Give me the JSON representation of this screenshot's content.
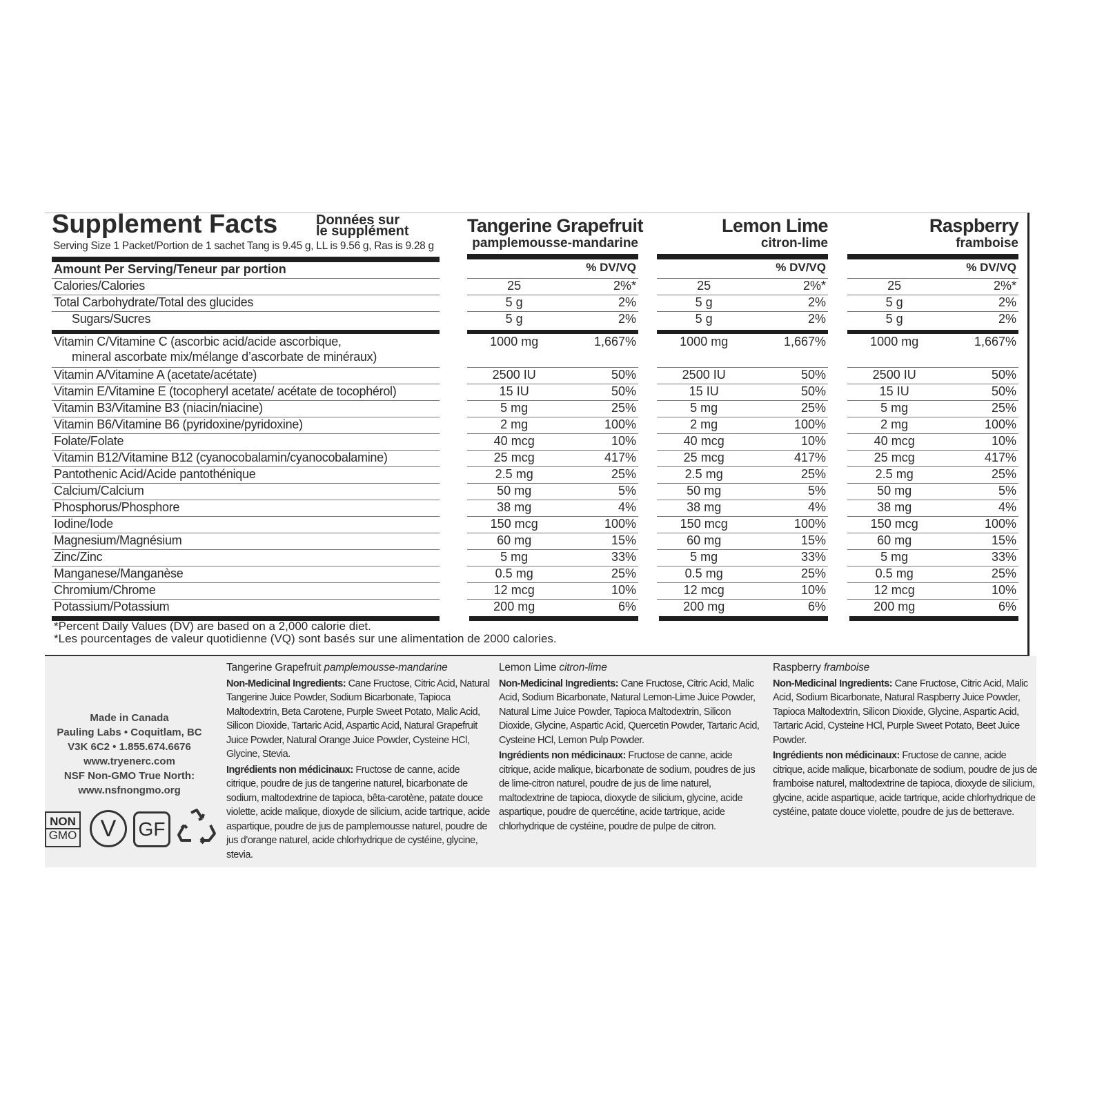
{
  "header": {
    "title": "Supplement Facts",
    "title_fr": [
      "Données sur",
      "le supplément"
    ],
    "serving": "Serving Size 1 Packet/Portion de 1 sachet Tang is 9.45 g, LL is 9.56 g, Ras is 9.28 g",
    "amount_header": "Amount Per Serving/Teneur par portion",
    "dv_header": "% DV/VQ"
  },
  "flavors": [
    {
      "name": "Tangerine Grapefruit",
      "name_fr": "pamplemousse-mandarine"
    },
    {
      "name": "Lemon Lime",
      "name_fr": "citron-lime"
    },
    {
      "name": "Raspberry",
      "name_fr": "framboise"
    }
  ],
  "table": {
    "rows": [
      {
        "label": [
          "Calories/Calories"
        ],
        "cells": [
          [
            "25",
            "2%*"
          ],
          [
            "25",
            "2%*"
          ],
          [
            "25",
            "2%*"
          ]
        ]
      },
      {
        "label": [
          "Total Carbohydrate/Total des glucides"
        ],
        "cells": [
          [
            "5 g",
            "2%"
          ],
          [
            "5 g",
            "2%"
          ],
          [
            "5 g",
            "2%"
          ]
        ]
      },
      {
        "label": [
          "Sugars/Sucres"
        ],
        "indent": true,
        "cells": [
          [
            "5 g",
            "2%"
          ],
          [
            "5 g",
            "2%"
          ],
          [
            "5 g",
            "2%"
          ]
        ]
      },
      {
        "label": [
          "Vitamin C/Vitamine C (ascorbic acid/acide ascorbique,",
          "mineral ascorbate mix/mélange d’ascorbate de minéraux)"
        ],
        "cells": [
          [
            "1000 mg",
            "1,667%"
          ],
          [
            "1000 mg",
            "1,667%"
          ],
          [
            "1000 mg",
            "1,667%"
          ]
        ]
      },
      {
        "label": [
          "Vitamin A/Vitamine A (acetate/acétate)"
        ],
        "cells": [
          [
            "2500 IU",
            "50%"
          ],
          [
            "2500 IU",
            "50%"
          ],
          [
            "2500 IU",
            "50%"
          ]
        ]
      },
      {
        "label": [
          "Vitamin E/Vitamine E (tocopheryl acetate/ acétate de tocophérol)"
        ],
        "cells": [
          [
            "15 IU",
            "50%"
          ],
          [
            "15 IU",
            "50%"
          ],
          [
            "15 IU",
            "50%"
          ]
        ]
      },
      {
        "label": [
          "Vitamin B3/Vitamine B3 (niacin/niacine)"
        ],
        "cells": [
          [
            "5 mg",
            "25%"
          ],
          [
            "5 mg",
            "25%"
          ],
          [
            "5 mg",
            "25%"
          ]
        ]
      },
      {
        "label": [
          "Vitamin B6/Vitamine B6 (pyridoxine/pyridoxine)"
        ],
        "cells": [
          [
            "2 mg",
            "100%"
          ],
          [
            "2 mg",
            "100%"
          ],
          [
            "2 mg",
            "100%"
          ]
        ]
      },
      {
        "label": [
          "Folate/Folate"
        ],
        "cells": [
          [
            "40 mcg",
            "10%"
          ],
          [
            "40 mcg",
            "10%"
          ],
          [
            "40 mcg",
            "10%"
          ]
        ]
      },
      {
        "label": [
          "Vitamin B12/Vitamine B12 (cyanocobalamin/cyanocobalamine)"
        ],
        "cells": [
          [
            "25 mcg",
            "417%"
          ],
          [
            "25 mcg",
            "417%"
          ],
          [
            "25 mcg",
            "417%"
          ]
        ]
      },
      {
        "label": [
          "Pantothenic Acid/Acide pantothénique"
        ],
        "cells": [
          [
            "2.5 mg",
            "25%"
          ],
          [
            "2.5 mg",
            "25%"
          ],
          [
            "2.5 mg",
            "25%"
          ]
        ]
      },
      {
        "label": [
          "Calcium/Calcium"
        ],
        "cells": [
          [
            "50 mg",
            "5%"
          ],
          [
            "50 mg",
            "5%"
          ],
          [
            "50 mg",
            "5%"
          ]
        ]
      },
      {
        "label": [
          "Phosphorus/Phosphore"
        ],
        "cells": [
          [
            "38 mg",
            "4%"
          ],
          [
            "38 mg",
            "4%"
          ],
          [
            "38 mg",
            "4%"
          ]
        ]
      },
      {
        "label": [
          "Iodine/Iode"
        ],
        "cells": [
          [
            "150 mcg",
            "100%"
          ],
          [
            "150 mcg",
            "100%"
          ],
          [
            "150 mcg",
            "100%"
          ]
        ]
      },
      {
        "label": [
          "Magnesium/Magnésium"
        ],
        "cells": [
          [
            "60 mg",
            "15%"
          ],
          [
            "60 mg",
            "15%"
          ],
          [
            "60 mg",
            "15%"
          ]
        ]
      },
      {
        "label": [
          "Zinc/Zinc"
        ],
        "cells": [
          [
            "5 mg",
            "33%"
          ],
          [
            "5 mg",
            "33%"
          ],
          [
            "5 mg",
            "33%"
          ]
        ]
      },
      {
        "label": [
          "Manganese/Manganèse"
        ],
        "cells": [
          [
            "0.5 mg",
            "25%"
          ],
          [
            "0.5 mg",
            "25%"
          ],
          [
            "0.5 mg",
            "25%"
          ]
        ]
      },
      {
        "label": [
          "Chromium/Chrome"
        ],
        "cells": [
          [
            "12 mcg",
            "10%"
          ],
          [
            "12 mcg",
            "10%"
          ],
          [
            "12 mcg",
            "10%"
          ]
        ]
      },
      {
        "label": [
          "Potassium/Potassium"
        ],
        "cells": [
          [
            "200 mg",
            "6%"
          ],
          [
            "200 mg",
            "6%"
          ],
          [
            "200 mg",
            "6%"
          ]
        ]
      }
    ]
  },
  "footnotes": [
    "*Percent Daily Values (DV) are based on a 2,000 calorie diet.",
    "*Les pourcentages de valeur quotidienne (VQ) sont basés sur une alimentation de 2000 calories."
  ],
  "company": [
    "Made in Canada",
    "Pauling Labs • Coquitlam, BC",
    "V3K 6C2 • 1.855.674.6676",
    "www.tryenerc.com",
    "NSF Non-GMO True North:",
    "www.nsfnongmo.org"
  ],
  "badges": {
    "non_gmo": [
      "NON",
      "GMO"
    ],
    "vegan": "V",
    "gluten_free": "GF"
  },
  "ingredients": [
    {
      "name": "Tangerine Grapefruit",
      "name_fr": "pamplemousse-mandarine",
      "label": "Non-Medicinal Ingredients:",
      "text": "Cane Fructose, Citric Acid, Natural Tangerine Juice Powder, Sodium Bicarbonate, Tapioca Maltodextrin, Beta Carotene, Purple Sweet Potato, Malic Acid, Silicon Dioxide, Tartaric Acid, Aspartic Acid, Natural Grapefruit Juice Powder, Natural Orange Juice Powder, Cysteine HCl, Glycine, Stevia.",
      "label_fr": "Ingrédients non médicinaux:",
      "text_fr": "Fructose de canne, acide citrique, poudre de jus de tangerine naturel, bicarbonate de sodium, maltodextrine de tapioca, bêta-carotène, patate douce violette, acide malique, dioxyde de silicium, acide tartrique, acide aspartique, poudre de jus de pamplemousse naturel, poudre de jus d’orange naturel, acide chlorhydrique de cystéine, glycine, stevia."
    },
    {
      "name": "Lemon Lime",
      "name_fr": "citron-lime",
      "label": "Non-Medicinal Ingredients:",
      "text": "Cane Fructose, Citric Acid, Malic Acid, Sodium Bicarbonate, Natural Lemon-Lime Juice Powder, Natural Lime Juice Powder, Tapioca Maltodextrin, Silicon Dioxide, Glycine, Aspartic Acid, Quercetin Powder, Tartaric Acid, Cysteine HCl, Lemon Pulp Powder.",
      "label_fr": "Ingrédients non médicinaux:",
      "text_fr": "Fructose de canne, acide citrique, acide malique, bicarbonate de sodium, poudres de jus de lime-citron naturel, poudre de jus de lime naturel, maltodextrine de tapioca, dioxyde de silicium, glycine, acide aspartique, poudre de quercétine, acide tartrique, acide chlorhydrique de cystéine, poudre de pulpe de citron."
    },
    {
      "name": "Raspberry",
      "name_fr": "framboise",
      "label": "Non-Medicinal Ingredients:",
      "text": "Cane Fructose, Citric Acid, Malic Acid, Sodium Bicarbonate, Natural Raspberry Juice Powder, Tapioca Maltodextrin, Silicon Dioxide, Glycine, Aspartic Acid, Tartaric Acid, Cysteine HCl, Purple Sweet Potato, Beet Juice Powder.",
      "label_fr": "Ingrédients non médicinaux:",
      "text_fr": "Fructose de canne, acide citrique, acide malique, bicarbonate de sodium, poudre de jus de framboise naturel, maltodextrine de tapioca, dioxyde de silicium, glycine, acide aspartique, acide tartrique, acide chlorhydrique de cystéine, patate douce violette, poudre de jus de betterave."
    }
  ]
}
